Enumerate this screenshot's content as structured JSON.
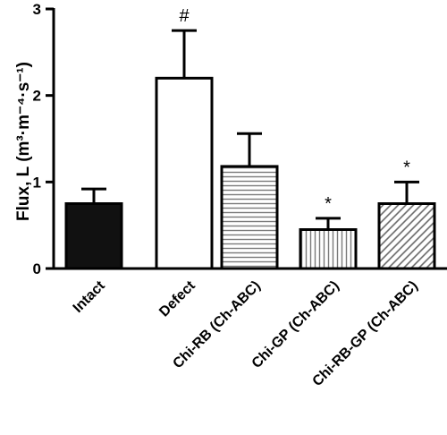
{
  "chart_data": {
    "type": "bar",
    "title": "",
    "xlabel": "",
    "ylabel": "Flux, L (m³·m⁻⁴·s⁻¹)",
    "ylim": [
      0,
      3
    ],
    "yticks": [
      0,
      1,
      2,
      3
    ],
    "grid": false,
    "categories": [
      "Intact",
      "Defect",
      "Chi-RB (Ch-ABC)",
      "Chi-GP (Ch-ABC)",
      "Chi-RB-GP (Ch-ABC)"
    ],
    "values": [
      0.75,
      2.2,
      1.18,
      0.45,
      0.75
    ],
    "errors": [
      0.17,
      0.55,
      0.38,
      0.13,
      0.25
    ],
    "annotations": [
      "",
      "#",
      "",
      "*",
      "*"
    ],
    "fills": [
      "solid-black",
      "white",
      "horizontal-stripes",
      "vertical-stripes",
      "diagonal-stripes"
    ],
    "colors": {
      "ink": "#000000",
      "stripe": "#777777",
      "background": "#ffffff"
    }
  }
}
